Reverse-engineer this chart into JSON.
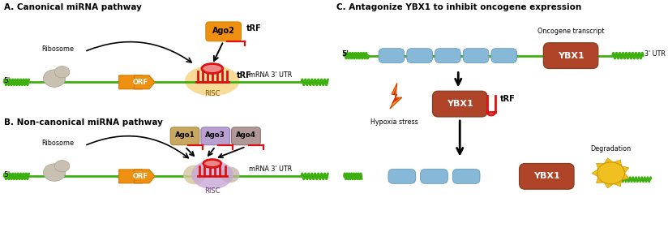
{
  "title_A": "A. Canonical miRNA pathway",
  "title_B": "B. Non-canonical miRNA pathway",
  "title_C": "C. Antagonize YBX1 to inhibit oncogene expression",
  "lbl_5p": "5'",
  "lbl_ORF": "ORF",
  "lbl_mRNA3UTR": "mRNA 3' UTR",
  "lbl_Ribosome": "Ribosome",
  "lbl_RISC": "RISC",
  "lbl_tRF": "tRF",
  "lbl_Ago2": "Ago2",
  "lbl_Ago1": "Ago1",
  "lbl_Ago3": "Ago3",
  "lbl_Ago4": "Ago4",
  "lbl_YBX1": "YBX1",
  "lbl_oncogene": "Oncogene transcript",
  "lbl_3UTR": "3' UTR",
  "lbl_hypoxia": "Hypoxia stress",
  "lbl_degradation": "Degradation",
  "col_green": "#3db010",
  "col_ribosome": "#c8c0b0",
  "col_orf": "#f09010",
  "col_ago2": "#f09010",
  "col_ago1": "#c8a860",
  "col_ago3": "#b8a0d0",
  "col_ago4": "#b09898",
  "col_risc_glow_A": "#f5c860",
  "col_risc_red": "#dd1111",
  "col_risc_bump_A": "#ee8888",
  "col_risc_glow_B": "#c8a8d8",
  "col_ybx1": "#b04428",
  "col_blue_exon": "#88b8d8",
  "col_yellow": "#f0c020",
  "col_bg": "#ffffff",
  "figsize": [
    8.24,
    2.86
  ],
  "dpi": 100
}
